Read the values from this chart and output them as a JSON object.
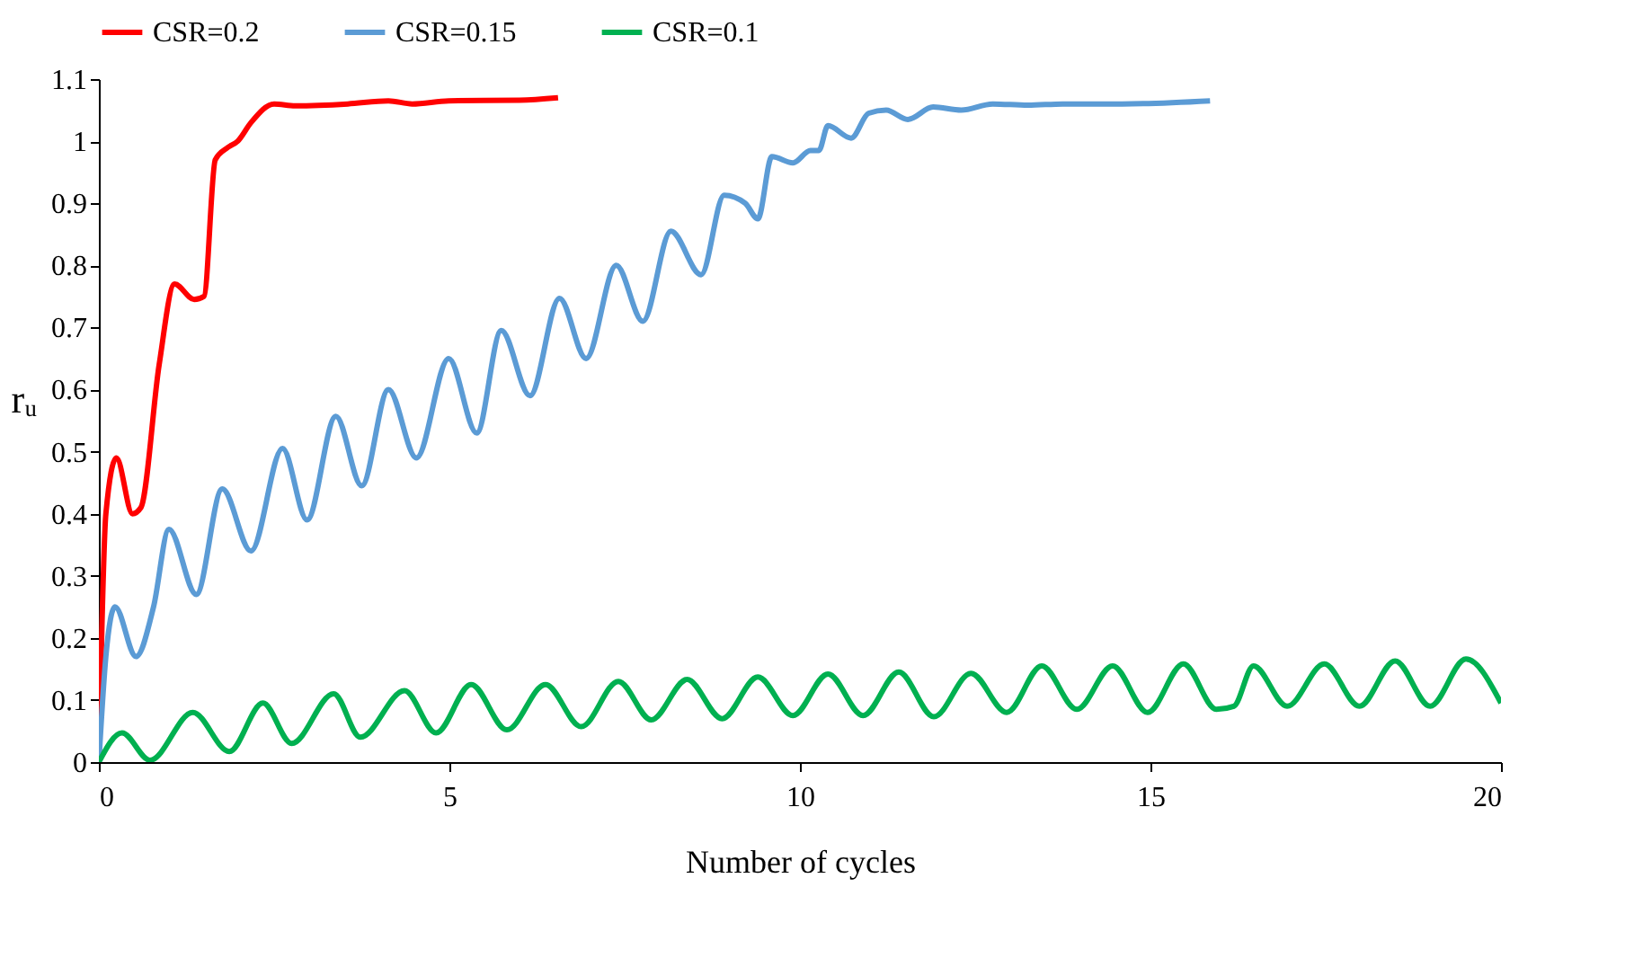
{
  "chart_data": {
    "type": "line",
    "xlabel": "Number of cycles",
    "ylabel": "rᵤ",
    "xlim": [
      0,
      20
    ],
    "xticks": [
      0,
      5,
      10,
      15,
      20
    ],
    "ylim": [
      0,
      1.1
    ],
    "yticks": [
      0,
      0.1,
      0.2,
      0.3,
      0.4,
      0.5,
      0.6,
      0.7,
      0.8,
      0.9,
      1,
      1.1
    ],
    "grid": false,
    "legend": "top",
    "marker": "none",
    "line_style": "solid",
    "series": [
      {
        "name": "CSR=0.2",
        "color": "#ff0000",
        "x": [
          0,
          0.1,
          0.25,
          0.48,
          0.6,
          0.86,
          1.08,
          1.36,
          1.5,
          1.66,
          1.84,
          1.98,
          2.17,
          2.5,
          2.8,
          3.55,
          4.13,
          4.47,
          4.99,
          6.0,
          6.55
        ],
        "values": [
          0,
          0.4,
          0.49,
          0.4,
          0.41,
          0.64,
          0.77,
          0.745,
          0.75,
          0.97,
          0.99,
          1.0,
          1.03,
          1.06,
          1.057,
          1.06,
          1.065,
          1.06,
          1.065,
          1.066,
          1.07
        ]
      },
      {
        "name": "CSR=0.15",
        "color": "#5b9bd5",
        "x": [
          0,
          0.1,
          0.23,
          0.53,
          0.78,
          1.0,
          1.39,
          1.76,
          2.17,
          2.62,
          2.97,
          3.38,
          3.75,
          4.13,
          4.53,
          4.99,
          5.39,
          5.74,
          6.15,
          6.57,
          6.95,
          7.38,
          7.76,
          8.16,
          8.59,
          8.92,
          9.22,
          9.4,
          9.6,
          9.9,
          10.15,
          10.27,
          10.4,
          10.73,
          10.98,
          11.23,
          11.54,
          11.9,
          12.3,
          12.75,
          13.25,
          13.75,
          14.6,
          15.85
        ],
        "values": [
          0,
          0.17,
          0.25,
          0.17,
          0.25,
          0.375,
          0.27,
          0.44,
          0.34,
          0.505,
          0.39,
          0.557,
          0.445,
          0.6,
          0.49,
          0.65,
          0.53,
          0.695,
          0.59,
          0.747,
          0.65,
          0.8,
          0.71,
          0.855,
          0.785,
          0.913,
          0.9,
          0.875,
          0.975,
          0.965,
          0.985,
          0.985,
          1.025,
          1.005,
          1.045,
          1.05,
          1.035,
          1.055,
          1.05,
          1.06,
          1.058,
          1.06,
          1.06,
          1.065
        ]
      },
      {
        "name": "CSR=0.1",
        "color": "#00b050",
        "x": [
          0,
          0.33,
          0.73,
          1.34,
          1.86,
          2.34,
          2.75,
          3.35,
          3.73,
          4.36,
          4.81,
          5.31,
          5.82,
          6.37,
          6.88,
          7.41,
          7.88,
          8.39,
          8.89,
          9.4,
          9.9,
          10.4,
          10.9,
          11.41,
          11.91,
          12.44,
          12.95,
          13.45,
          13.95,
          14.46,
          14.96,
          15.47,
          15.94,
          16.19,
          16.47,
          16.95,
          17.48,
          17.98,
          18.49,
          18.99,
          19.5,
          20
        ],
        "values": [
          0,
          0.047,
          0.003,
          0.08,
          0.017,
          0.095,
          0.03,
          0.11,
          0.04,
          0.115,
          0.047,
          0.125,
          0.052,
          0.125,
          0.057,
          0.13,
          0.068,
          0.133,
          0.07,
          0.137,
          0.075,
          0.142,
          0.075,
          0.145,
          0.073,
          0.143,
          0.08,
          0.155,
          0.085,
          0.155,
          0.08,
          0.158,
          0.085,
          0.09,
          0.155,
          0.09,
          0.158,
          0.09,
          0.163,
          0.09,
          0.166,
          0.095
        ]
      }
    ]
  }
}
